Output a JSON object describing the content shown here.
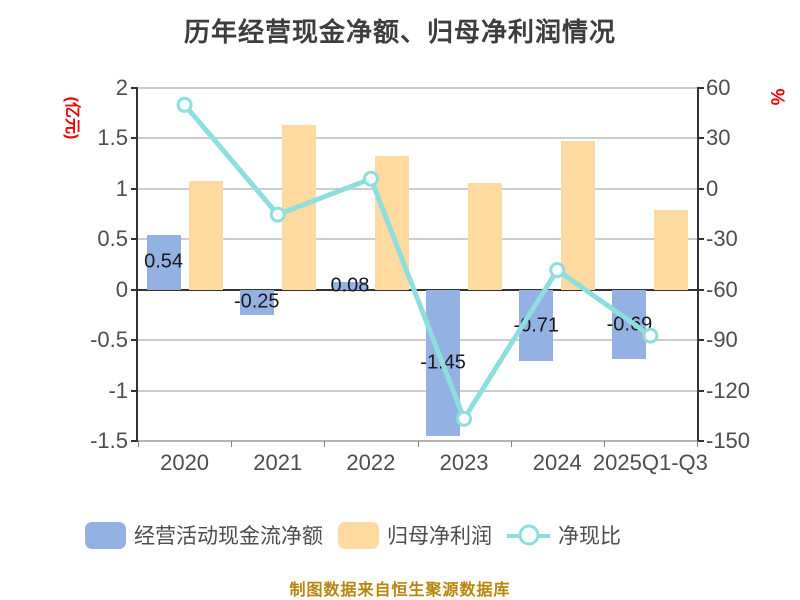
{
  "chart_data": {
    "type": "bar+line combo",
    "title": "历年经营现金净额、归母净利润情况",
    "categories": [
      "2020",
      "2021",
      "2022",
      "2023",
      "2024",
      "2025Q1-Q3"
    ],
    "series": [
      {
        "name": "经营活动现金流净额",
        "type": "bar",
        "axis": "left",
        "color": "#93B1E2",
        "values": [
          0.54,
          -0.25,
          0.08,
          -1.45,
          -0.71,
          -0.69
        ],
        "labels": [
          "0.54",
          "-0.25",
          "0.08",
          "-1.45",
          "-0.71",
          "-0.69"
        ]
      },
      {
        "name": "归母净利润",
        "type": "bar",
        "axis": "left",
        "color": "#FED9A0",
        "values": [
          1.08,
          1.63,
          1.33,
          1.06,
          1.47,
          0.79
        ]
      },
      {
        "name": "净现比",
        "type": "line",
        "axis": "right",
        "color": "#8EDEDD",
        "marker": "circle-white-fill",
        "values": [
          50,
          -15.3,
          6,
          -136.8,
          -48.3,
          -87.3
        ]
      }
    ],
    "left_axis_unit": "(亿元)",
    "right_axis_unit": "%",
    "left_axis_range": [
      -1.5,
      2
    ],
    "right_axis_range": [
      -150,
      60
    ],
    "left_ticks": [
      "2",
      "1.5",
      "1",
      "0.5",
      "0",
      "-0.5",
      "-1",
      "-1.5"
    ],
    "right_ticks": [
      "60",
      "30",
      "0",
      "-30",
      "-60",
      "-90",
      "-120",
      "-150"
    ],
    "grid": true,
    "legend_position": "bottom"
  },
  "caption": "制图数据来自恒生聚源数据库",
  "colors": {
    "bar_blue": "#93B1E2",
    "bar_yellow": "#FED9A0",
    "line_teal": "#8EDEDD",
    "axis_text": "#4D4D4D",
    "title_text": "#3D3D3D",
    "unit_red": "#ED0000",
    "caption_gold": "#B8860B",
    "gridline": "#CCCCCC",
    "axis_line": "#333333"
  }
}
